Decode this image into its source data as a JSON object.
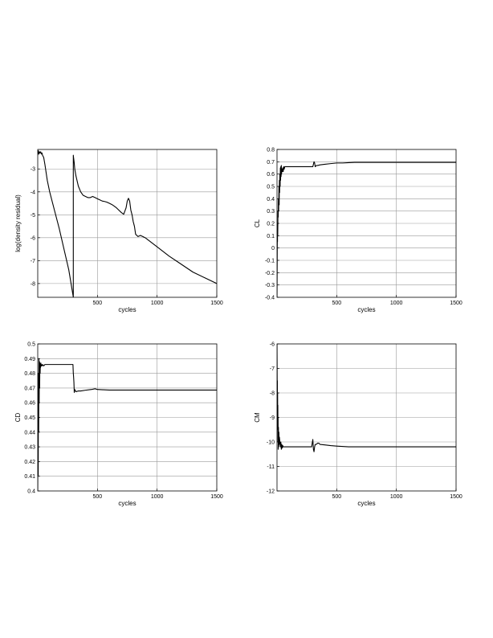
{
  "chart_data": [
    {
      "type": "line",
      "xlabel": "cycles",
      "ylabel": "log(density residual)",
      "xlim": [
        0,
        1500
      ],
      "ylim": [
        -8.6,
        -2.15
      ],
      "xticks": [
        500,
        1000,
        1500
      ],
      "yticks": [
        -8,
        -7,
        -6,
        -5,
        -4,
        -3
      ],
      "grid": true,
      "series": [
        {
          "x": [
            0,
            5,
            10,
            15,
            20,
            25,
            30,
            35,
            40,
            50,
            60,
            80,
            100,
            140,
            180,
            220,
            260,
            295,
            298,
            298,
            300,
            305,
            310,
            320,
            340,
            360,
            380,
            400,
            420,
            440,
            460,
            480,
            500,
            520,
            540,
            560,
            580,
            600,
            620,
            640,
            660,
            680,
            700,
            720,
            740,
            750,
            760,
            770,
            780,
            790,
            800,
            810,
            820,
            840,
            860,
            880,
            900,
            1000,
            1100,
            1200,
            1300,
            1400,
            1500
          ],
          "y": [
            -2.4,
            -2.2,
            -2.35,
            -2.25,
            -2.3,
            -2.25,
            -2.35,
            -2.3,
            -2.4,
            -2.5,
            -2.8,
            -3.5,
            -4.0,
            -4.8,
            -5.6,
            -6.5,
            -7.4,
            -8.5,
            -8.6,
            -2.4,
            -2.5,
            -2.7,
            -3.0,
            -3.3,
            -3.75,
            -4.0,
            -4.15,
            -4.2,
            -4.25,
            -4.25,
            -4.2,
            -4.25,
            -4.3,
            -4.35,
            -4.4,
            -4.42,
            -4.45,
            -4.5,
            -4.55,
            -4.62,
            -4.7,
            -4.8,
            -4.9,
            -4.98,
            -4.7,
            -4.4,
            -4.28,
            -4.4,
            -4.8,
            -5.0,
            -5.3,
            -5.5,
            -5.85,
            -5.95,
            -5.9,
            -5.95,
            -6.0,
            -6.4,
            -6.8,
            -7.15,
            -7.5,
            -7.75,
            -8.0
          ]
        }
      ]
    },
    {
      "type": "line",
      "xlabel": "cycles",
      "ylabel": "CL",
      "xlim": [
        0,
        1500
      ],
      "ylim": [
        -0.4,
        0.8
      ],
      "xticks": [
        500,
        1000,
        1500
      ],
      "yticks": [
        -0.4,
        -0.3,
        -0.2,
        -0.1,
        0,
        0.1,
        0.2,
        0.3,
        0.4,
        0.5,
        0.6,
        0.7,
        0.8
      ],
      "grid": true,
      "series": [
        {
          "x": [
            0,
            1,
            2,
            3,
            4,
            5,
            6,
            8,
            10,
            12,
            14,
            16,
            18,
            20,
            22,
            24,
            26,
            28,
            30,
            32,
            34,
            36,
            38,
            40,
            44,
            48,
            52,
            56,
            60,
            65,
            70,
            80,
            100,
            150,
            200,
            250,
            280,
            300,
            305,
            310,
            315,
            320,
            330,
            340,
            360,
            400,
            450,
            500,
            550,
            600,
            650,
            700,
            800,
            1000,
            1200,
            1500
          ],
          "y": [
            -0.4,
            -0.2,
            0.0,
            0.1,
            0.05,
            0.2,
            0.1,
            0.3,
            0.25,
            0.4,
            0.3,
            0.5,
            0.35,
            0.55,
            0.45,
            0.6,
            0.5,
            0.65,
            0.55,
            0.66,
            0.58,
            0.67,
            0.6,
            0.64,
            0.62,
            0.65,
            0.62,
            0.66,
            0.64,
            0.66,
            0.66,
            0.66,
            0.66,
            0.66,
            0.66,
            0.66,
            0.66,
            0.66,
            0.68,
            0.7,
            0.69,
            0.66,
            0.67,
            0.67,
            0.675,
            0.68,
            0.685,
            0.69,
            0.69,
            0.693,
            0.695,
            0.695,
            0.695,
            0.695,
            0.695,
            0.695
          ]
        }
      ]
    },
    {
      "type": "line",
      "xlabel": "cycles",
      "ylabel": "CD",
      "xlim": [
        0,
        1500
      ],
      "ylim": [
        0.4,
        0.5
      ],
      "xticks": [
        500,
        1000,
        1500
      ],
      "yticks": [
        0.4,
        0.41,
        0.42,
        0.43,
        0.44,
        0.45,
        0.46,
        0.47,
        0.48,
        0.49,
        0.5
      ],
      "grid": true,
      "series": [
        {
          "x": [
            0,
            2,
            4,
            6,
            8,
            10,
            12,
            14,
            16,
            18,
            20,
            22,
            24,
            26,
            28,
            30,
            35,
            40,
            50,
            60,
            80,
            100,
            150,
            200,
            250,
            290,
            295,
            298,
            300,
            303,
            306,
            310,
            320,
            340,
            360,
            400,
            450,
            480,
            500,
            550,
            600,
            700,
            800,
            1000,
            1200,
            1500
          ],
          "y": [
            0.4,
            0.45,
            0.41,
            0.48,
            0.44,
            0.49,
            0.46,
            0.488,
            0.47,
            0.487,
            0.48,
            0.486,
            0.484,
            0.487,
            0.485,
            0.486,
            0.485,
            0.486,
            0.485,
            0.486,
            0.486,
            0.486,
            0.486,
            0.486,
            0.486,
            0.486,
            0.486,
            0.48,
            0.478,
            0.474,
            0.467,
            0.469,
            0.4675,
            0.468,
            0.468,
            0.4685,
            0.469,
            0.4695,
            0.469,
            0.4688,
            0.4686,
            0.4686,
            0.4686,
            0.4686,
            0.4686,
            0.4686
          ]
        }
      ]
    },
    {
      "type": "line",
      "xlabel": "cycles",
      "ylabel": "CM",
      "xlim": [
        0,
        1500
      ],
      "ylim": [
        -12,
        -6
      ],
      "xticks": [
        500,
        1000,
        1500
      ],
      "yticks": [
        -12,
        -11,
        -10,
        -9,
        -8,
        -7,
        -6
      ],
      "grid": true,
      "series": [
        {
          "x": [
            0,
            1,
            2,
            3,
            4,
            5,
            6,
            7,
            8,
            9,
            10,
            12,
            14,
            16,
            18,
            20,
            24,
            28,
            32,
            36,
            40,
            44,
            48,
            52,
            56,
            60,
            70,
            80,
            100,
            150,
            200,
            250,
            280,
            290,
            295,
            300,
            305,
            310,
            315,
            320,
            330,
            340,
            350,
            360,
            400,
            450,
            500,
            600,
            700,
            800,
            1000,
            1500
          ],
          "y": [
            -6.0,
            -7.0,
            -8.5,
            -7.5,
            -9.0,
            -8.0,
            -9.5,
            -8.5,
            -10.0,
            -9.0,
            -10.3,
            -9.4,
            -10.2,
            -9.6,
            -10.1,
            -9.8,
            -10.0,
            -10.2,
            -10.0,
            -10.3,
            -10.1,
            -10.25,
            -10.15,
            -10.2,
            -10.2,
            -10.2,
            -10.2,
            -10.2,
            -10.2,
            -10.2,
            -10.2,
            -10.2,
            -10.2,
            -10.2,
            -10.05,
            -9.9,
            -10.3,
            -10.4,
            -10.2,
            -10.1,
            -10.1,
            -10.05,
            -10.05,
            -10.1,
            -10.12,
            -10.15,
            -10.17,
            -10.2,
            -10.2,
            -10.2,
            -10.2,
            -10.2
          ]
        }
      ]
    }
  ]
}
